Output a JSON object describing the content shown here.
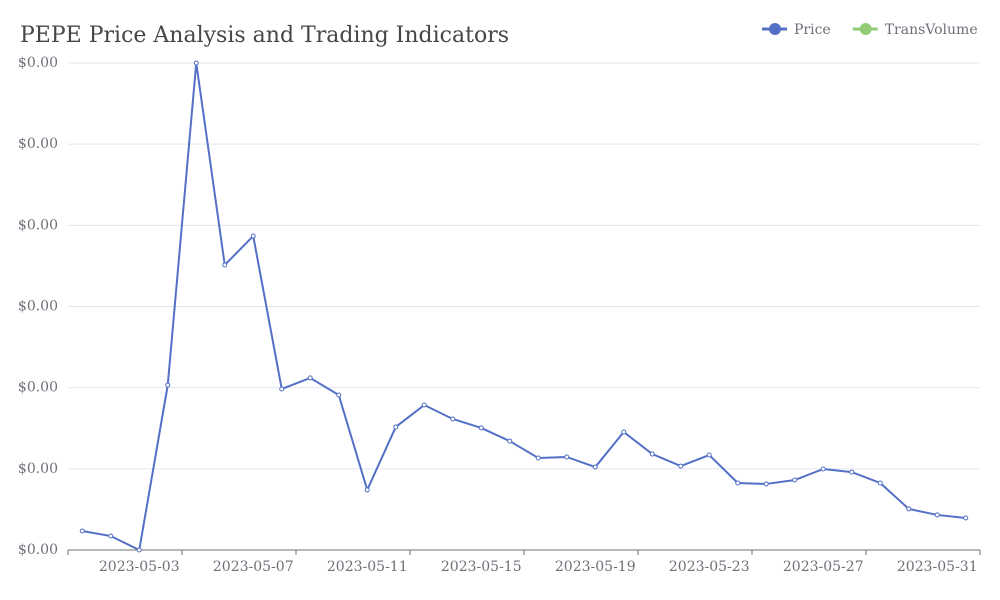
{
  "chart_data": {
    "type": "line",
    "title": "PEPE Price Analysis and Trading Indicators",
    "categories": [
      null,
      null,
      "2023-05-03",
      null,
      null,
      null,
      "2023-05-07",
      null,
      null,
      null,
      "2023-05-11",
      null,
      null,
      null,
      "2023-05-15",
      null,
      null,
      null,
      "2023-05-19",
      null,
      null,
      null,
      "2023-05-23",
      null,
      null,
      null,
      "2023-05-27",
      null,
      null,
      null,
      "2023-05-31",
      null
    ],
    "series": [
      {
        "name": "Price",
        "color": "#5470c6",
        "values": [
          1.17e-07,
          8.6e-08,
          0,
          1.016e-06,
          3e-06,
          1.756e-06,
          1.934e-06,
          9.92e-07,
          1.06e-06,
          9.55e-07,
          3.7e-07,
          7.58e-07,
          8.93e-07,
          8.07e-07,
          7.52e-07,
          6.71e-07,
          5.67e-07,
          5.73e-07,
          5.11e-07,
          7.27e-07,
          5.91e-07,
          5.17e-07,
          5.85e-07,
          4.13e-07,
          4.07e-07,
          4.31e-07,
          4.99e-07,
          4.8e-07,
          4.13e-07,
          2.53e-07,
          2.16e-07,
          1.97e-07
        ]
      },
      {
        "name": "TransVolume",
        "color": "#91cc75",
        "values": [
          null,
          null,
          null,
          null,
          null,
          null,
          null,
          null,
          null,
          null,
          null,
          null,
          null,
          null,
          null,
          null,
          null,
          null,
          null,
          null,
          null,
          null,
          null,
          null,
          null,
          null,
          null,
          null,
          null,
          null,
          null,
          null
        ]
      }
    ],
    "ylim": [
      0,
      3e-06
    ],
    "yticks": [
      {
        "value": 0,
        "label": "$0.00"
      },
      {
        "value": 5e-07,
        "label": "$0.00"
      },
      {
        "value": 1e-06,
        "label": "$0.00"
      },
      {
        "value": 1.5e-06,
        "label": "$0.00"
      },
      {
        "value": 2e-06,
        "label": "$0.00"
      },
      {
        "value": 2.5e-06,
        "label": "$0.00"
      },
      {
        "value": 3e-06,
        "label": "$0.00"
      }
    ],
    "grid": true,
    "legend": "top-right"
  }
}
